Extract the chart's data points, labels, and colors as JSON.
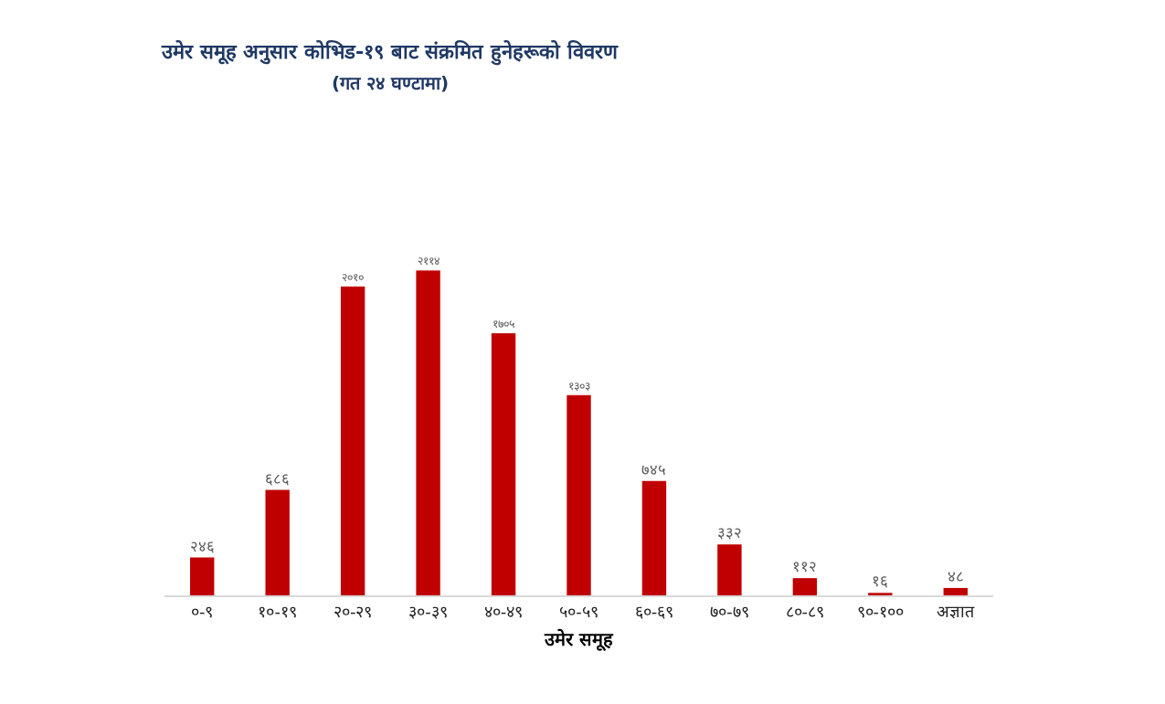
{
  "chart_data": {
    "type": "bar",
    "title": "उमेर समूह अनुसार कोभिड-१९ बाट संक्रमित हुनेहरूको विवरण",
    "subtitle": "(गत २४ घण्टामा)",
    "xlabel": "उमेर समूह",
    "categories": [
      "०-९",
      "१०-१९",
      "२०-२९",
      "३०-३९",
      "४०-४९",
      "५०-५९",
      "६०-६९",
      "७०-७९",
      "८०-८९",
      "९०-१००",
      "अज्ञात"
    ],
    "values": [
      246,
      686,
      2010,
      2114,
      1705,
      1303,
      745,
      332,
      112,
      16,
      48
    ],
    "value_labels": [
      "२४६",
      "६८६",
      "२०१०",
      "२११४",
      "१७०५",
      "१३०३",
      "७४५",
      "३३२",
      "११२",
      "१६",
      "४८"
    ],
    "color": "#c00000"
  }
}
